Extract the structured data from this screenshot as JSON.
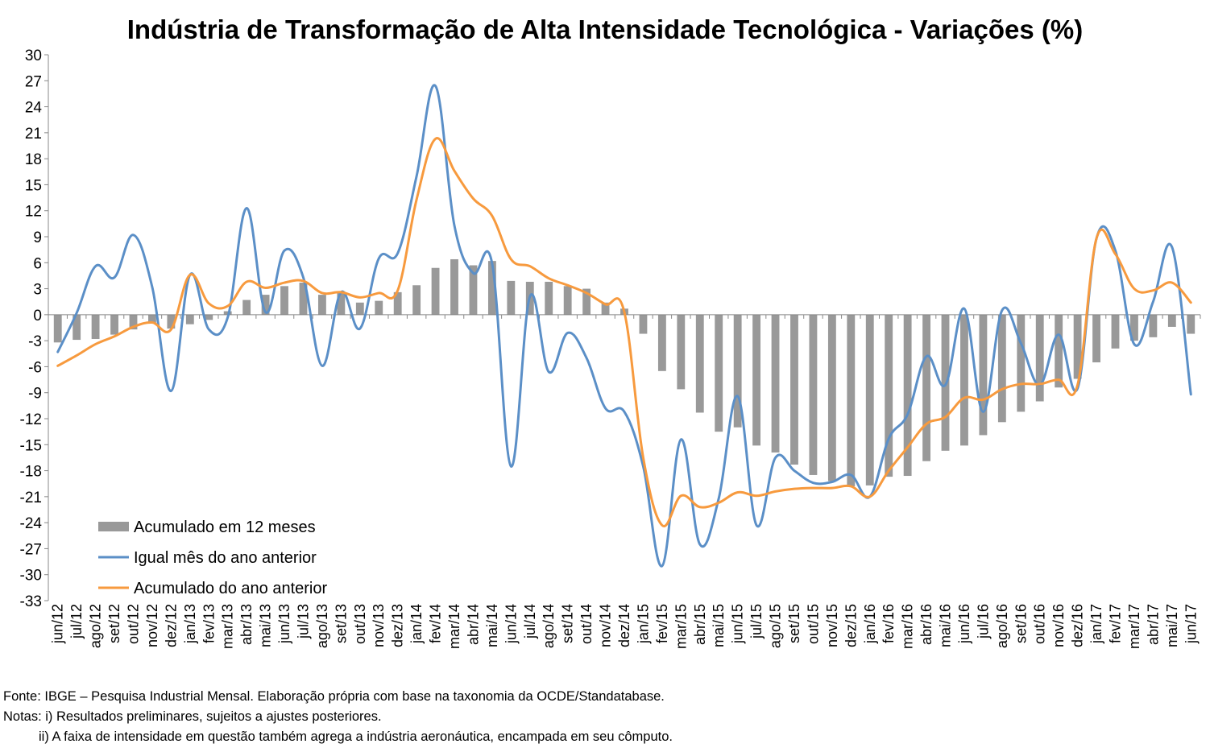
{
  "chart_data": {
    "type": "bar+line",
    "title": "Indústria de Transformação de Alta Intensidade Tecnológica - Variações (%)",
    "xlabel": "",
    "ylabel": "",
    "ylim": [
      -33,
      30
    ],
    "y_ticks": [
      30,
      27,
      24,
      21,
      18,
      15,
      12,
      9,
      6,
      3,
      0,
      -3,
      -6,
      -9,
      -12,
      -15,
      -18,
      -21,
      -24,
      -27,
      -30,
      -33
    ],
    "grid": false,
    "legend_position": "bottom-left",
    "categories": [
      "jun/12",
      "jul/12",
      "ago/12",
      "set/12",
      "out/12",
      "nov/12",
      "dez/12",
      "jan/13",
      "fev/13",
      "mar/13",
      "abr/13",
      "mai/13",
      "jun/13",
      "jul/13",
      "ago/13",
      "set/13",
      "out/13",
      "nov/13",
      "dez/13",
      "jan/14",
      "fev/14",
      "mar/14",
      "abr/14",
      "mai/14",
      "jun/14",
      "jul/14",
      "ago/14",
      "set/14",
      "out/14",
      "nov/14",
      "dez/14",
      "jan/15",
      "fev/15",
      "mar/15",
      "abr/15",
      "mai/15",
      "jun/15",
      "jul/15",
      "ago/15",
      "set/15",
      "out/15",
      "nov/15",
      "dez/15",
      "jan/16",
      "fev/16",
      "mar/16",
      "abr/16",
      "mai/16",
      "jun/16",
      "jul/16",
      "ago/16",
      "set/16",
      "out/16",
      "nov/16",
      "dez/16",
      "jan/17",
      "fev/17",
      "mar/17",
      "abr/17",
      "mai/17",
      "jun/17"
    ],
    "series": [
      {
        "name": "Acumulado em 12 meses",
        "type": "bar",
        "color": "#999999",
        "values": [
          -3.2,
          -2.9,
          -2.8,
          -2.3,
          -1.7,
          -1.0,
          -1.6,
          -1.1,
          -0.6,
          0.4,
          1.7,
          2.3,
          3.3,
          3.7,
          2.3,
          2.7,
          1.4,
          1.6,
          2.6,
          3.4,
          5.4,
          6.4,
          5.7,
          6.2,
          3.9,
          3.8,
          3.8,
          3.3,
          3.0,
          1.4,
          0.7,
          -2.2,
          -6.5,
          -8.6,
          -11.3,
          -13.5,
          -13.0,
          -15.1,
          -15.9,
          -17.3,
          -18.5,
          -19.2,
          -19.8,
          -19.7,
          -18.7,
          -18.6,
          -16.9,
          -15.7,
          -15.1,
          -13.9,
          -12.4,
          -11.2,
          -10.0,
          -8.4,
          -7.4,
          -5.5,
          -3.9,
          -3.0,
          -2.6,
          -1.4,
          -2.2
        ]
      },
      {
        "name": "Igual mês do ano anterior",
        "type": "line",
        "color": "#5B8FC7",
        "values": [
          -4.3,
          0.2,
          5.6,
          4.3,
          9.2,
          3.2,
          -8.8,
          4.6,
          -1.7,
          -0.3,
          12.3,
          0.3,
          7.4,
          4.3,
          -5.9,
          2.6,
          -1.6,
          6.5,
          7.1,
          16.0,
          26.4,
          10.3,
          4.8,
          5.9,
          -17.5,
          2.1,
          -6.6,
          -2.1,
          -5.0,
          -10.8,
          -11.2,
          -17.5,
          -29.0,
          -14.4,
          -26.5,
          -21.2,
          -9.4,
          -24.3,
          -16.5,
          -18.0,
          -19.4,
          -19.3,
          -18.5,
          -21.0,
          -14.3,
          -11.5,
          -4.8,
          -8.1,
          0.7,
          -11.2,
          0.5,
          -3.3,
          -8.1,
          -2.3,
          -8.5,
          8.8,
          7.4,
          -3.4,
          1.5,
          7.8,
          -9.2
        ]
      },
      {
        "name": "Acumulado do ano anterior",
        "type": "line",
        "color": "#F79A3E",
        "values": [
          -5.9,
          -4.7,
          -3.4,
          -2.5,
          -1.4,
          -0.9,
          -1.7,
          4.6,
          1.3,
          1.0,
          3.8,
          3.1,
          3.7,
          3.9,
          2.5,
          2.6,
          2.0,
          2.5,
          2.8,
          13.3,
          20.3,
          16.6,
          13.4,
          11.4,
          6.4,
          5.6,
          4.2,
          3.4,
          2.5,
          1.2,
          0.3,
          -16.5,
          -24.3,
          -20.9,
          -22.2,
          -21.7,
          -20.5,
          -20.9,
          -20.4,
          -20.1,
          -20.0,
          -20.0,
          -19.8,
          -21.0,
          -18.0,
          -15.3,
          -12.6,
          -11.8,
          -9.6,
          -9.8,
          -8.6,
          -8.0,
          -8.0,
          -7.5,
          -8.1,
          8.8,
          7.0,
          3.0,
          2.8,
          3.7,
          1.4
        ]
      }
    ]
  },
  "notes": {
    "source": "Fonte: IBGE – Pesquisa Industrial Mensal. Elaboração própria com base na taxonomia da OCDE/Standatabase.",
    "line1": "Notas: i) Resultados preliminares, sujeitos a ajustes posteriores.",
    "line2": "ii) A faixa de intensidade em questão também agrega a indústria aeronáutica, encampada em seu cômputo."
  }
}
